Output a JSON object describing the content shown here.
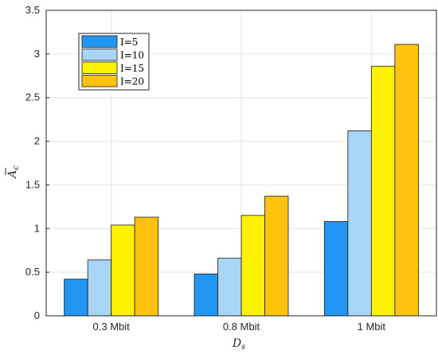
{
  "chart_data": {
    "type": "bar",
    "categories": [
      "0.3 Mbit",
      "0.8 Mbit",
      "1 Mbit"
    ],
    "series": [
      {
        "name": "I=5",
        "values": [
          0.42,
          0.48,
          1.08
        ],
        "color": "#2196F3"
      },
      {
        "name": "I=10",
        "values": [
          0.64,
          0.66,
          2.12
        ],
        "color": "#A8D4F5"
      },
      {
        "name": "I=15",
        "values": [
          1.04,
          1.15,
          2.86
        ],
        "color": "#FFF200"
      },
      {
        "name": "I=20",
        "values": [
          1.13,
          1.37,
          3.11
        ],
        "color": "#FFC20E"
      }
    ],
    "xlabel": "D",
    "xlabel_sub": "s",
    "ylabel": "A",
    "ylabel_sub": "c",
    "ylim": [
      0,
      3.5
    ],
    "yticks": [
      0,
      0.5,
      1,
      1.5,
      2,
      2.5,
      3,
      3.5
    ],
    "grid": true,
    "legend_position": "top-left"
  }
}
